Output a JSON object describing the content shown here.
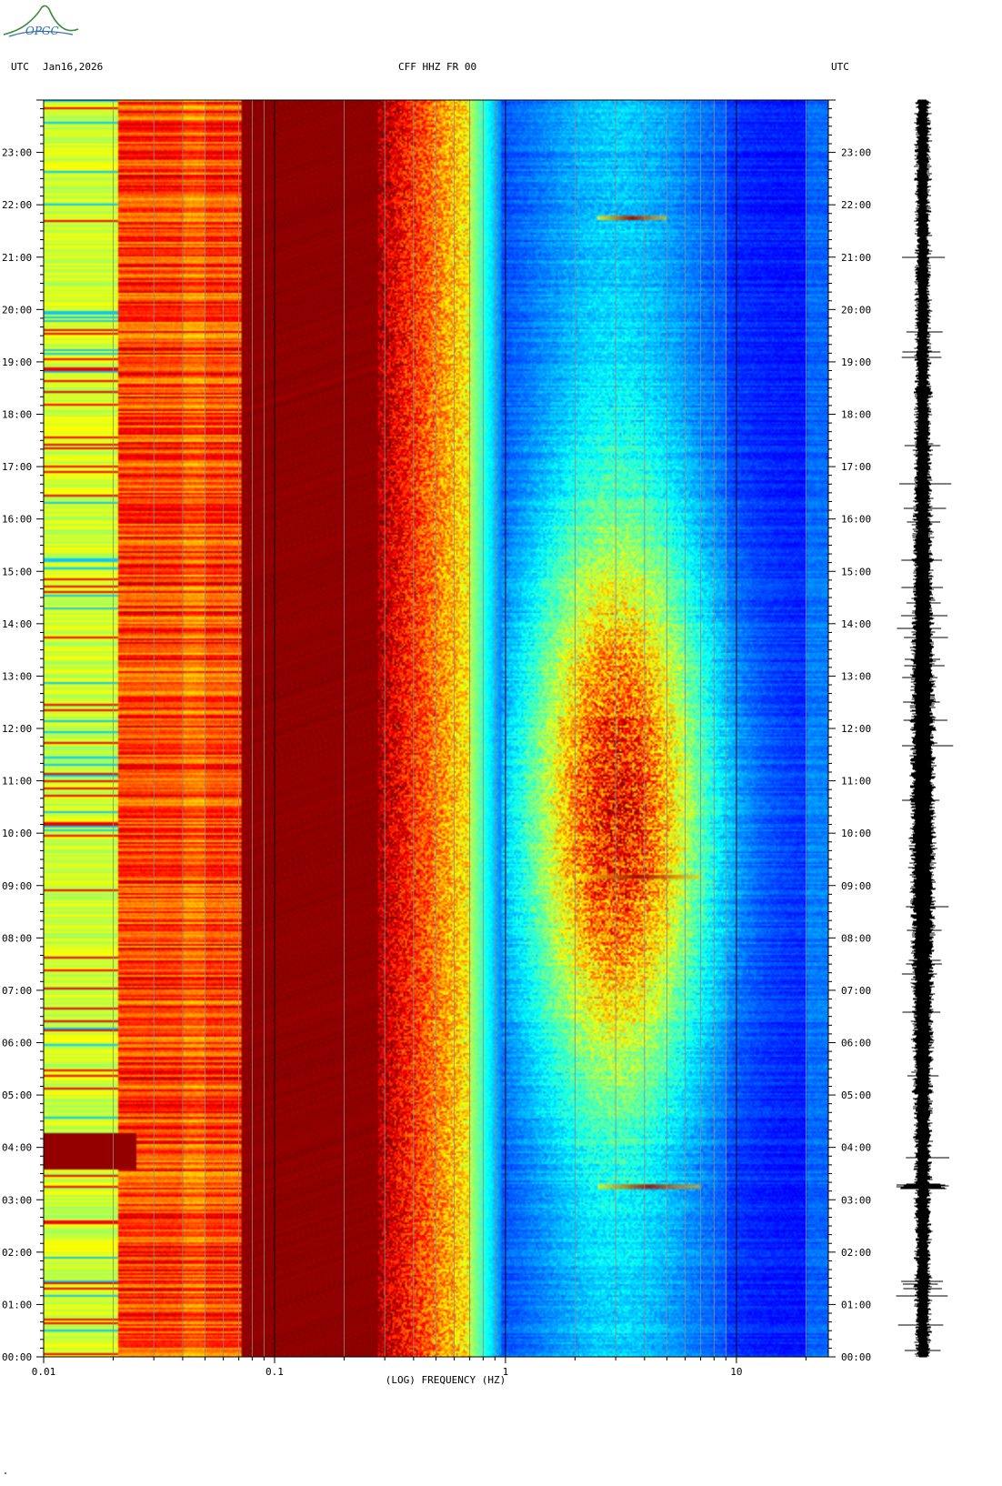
{
  "header": {
    "left_label": "UTC",
    "date": "Jan16,2026",
    "station": "CFF HHZ FR 00",
    "right_label": "UTC"
  },
  "logo": {
    "text": "OPGC"
  },
  "chart_data": {
    "type": "heatmap",
    "title": "CFF HHZ FR 00",
    "xlabel": "(LOG) FREQUENCY (HZ)",
    "ylabel": "",
    "x_scale": "log",
    "xlim": [
      0.01,
      25
    ],
    "x_ticks": [
      {
        "value": 0.01,
        "label": "0.01"
      },
      {
        "value": 0.1,
        "label": "0.1"
      },
      {
        "value": 1,
        "label": "1"
      },
      {
        "value": 10,
        "label": "10"
      }
    ],
    "ylim": [
      0,
      24
    ],
    "y_ticks": [
      "00:00",
      "01:00",
      "02:00",
      "03:00",
      "04:00",
      "05:00",
      "06:00",
      "07:00",
      "08:00",
      "09:00",
      "10:00",
      "11:00",
      "12:00",
      "13:00",
      "14:00",
      "15:00",
      "16:00",
      "17:00",
      "18:00",
      "19:00",
      "20:00",
      "21:00",
      "22:00",
      "23:00"
    ],
    "colormap": [
      "#00008b",
      "#0000ff",
      "#0080ff",
      "#00ffff",
      "#80ff80",
      "#ffff00",
      "#ff8000",
      "#ff0000",
      "#800000"
    ],
    "notable_events": [
      {
        "time": "03:15",
        "freq_hz": [
          2.5,
          7
        ],
        "description": ""
      },
      {
        "time": "09:10",
        "freq_hz": [
          2,
          7
        ],
        "description": ""
      },
      {
        "time": "21:45",
        "freq_hz": [
          2.5,
          5
        ],
        "description": ""
      }
    ]
  }
}
